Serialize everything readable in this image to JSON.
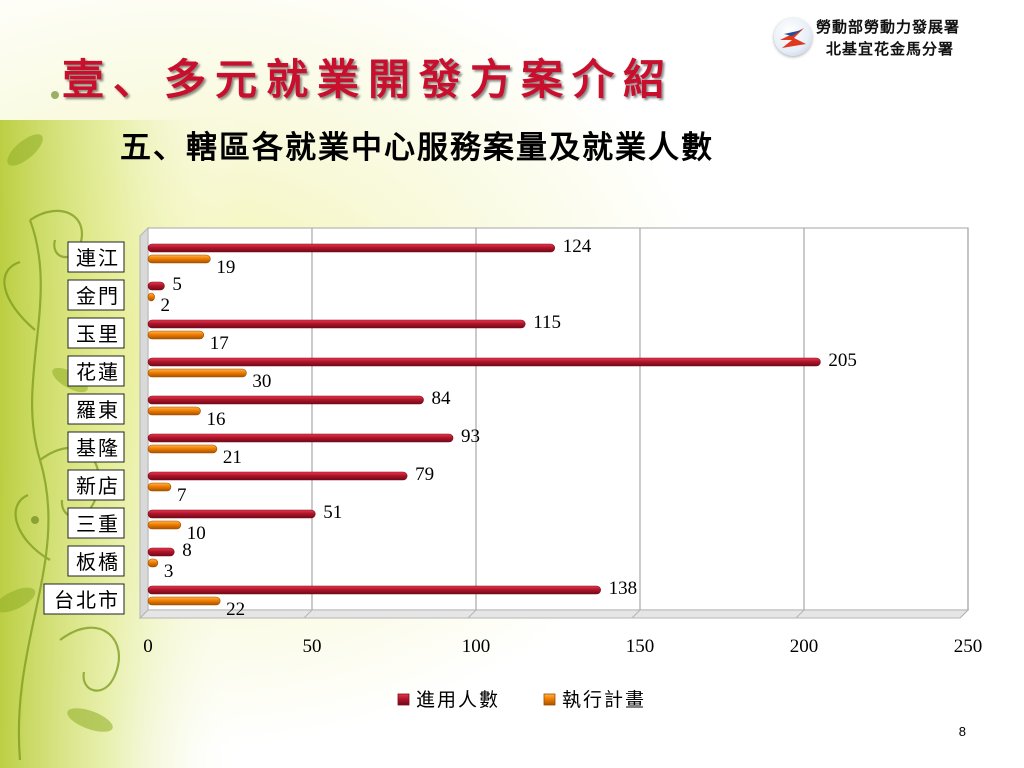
{
  "header": {
    "title": "壹、多元就業開發方案介紹",
    "subtitle": "五、轄區各就業中心服務案量及就業人數",
    "org_name": "勞動部勞動力發展署",
    "branch_name": "北基宜花金馬分署"
  },
  "page_number": "8",
  "colors": {
    "series_1": "#b0142a",
    "series_2": "#f07d00",
    "title": "#c8102e"
  },
  "chart_data": {
    "type": "bar",
    "orientation": "horizontal",
    "categories": [
      "連江",
      "金門",
      "玉里",
      "花蓮",
      "羅東",
      "基隆",
      "新店",
      "三重",
      "板橋",
      "台北市"
    ],
    "series": [
      {
        "name": "進用人數",
        "values": [
          124,
          5,
          115,
          205,
          84,
          93,
          79,
          51,
          8,
          138
        ]
      },
      {
        "name": "執行計畫",
        "values": [
          19,
          2,
          17,
          30,
          16,
          21,
          7,
          10,
          3,
          22
        ]
      }
    ],
    "xlim": [
      0,
      250
    ],
    "x_ticks": [
      "0",
      "50",
      "100",
      "150",
      "200",
      "250"
    ],
    "grid": true,
    "legend": "bottom",
    "data_labels": true
  }
}
